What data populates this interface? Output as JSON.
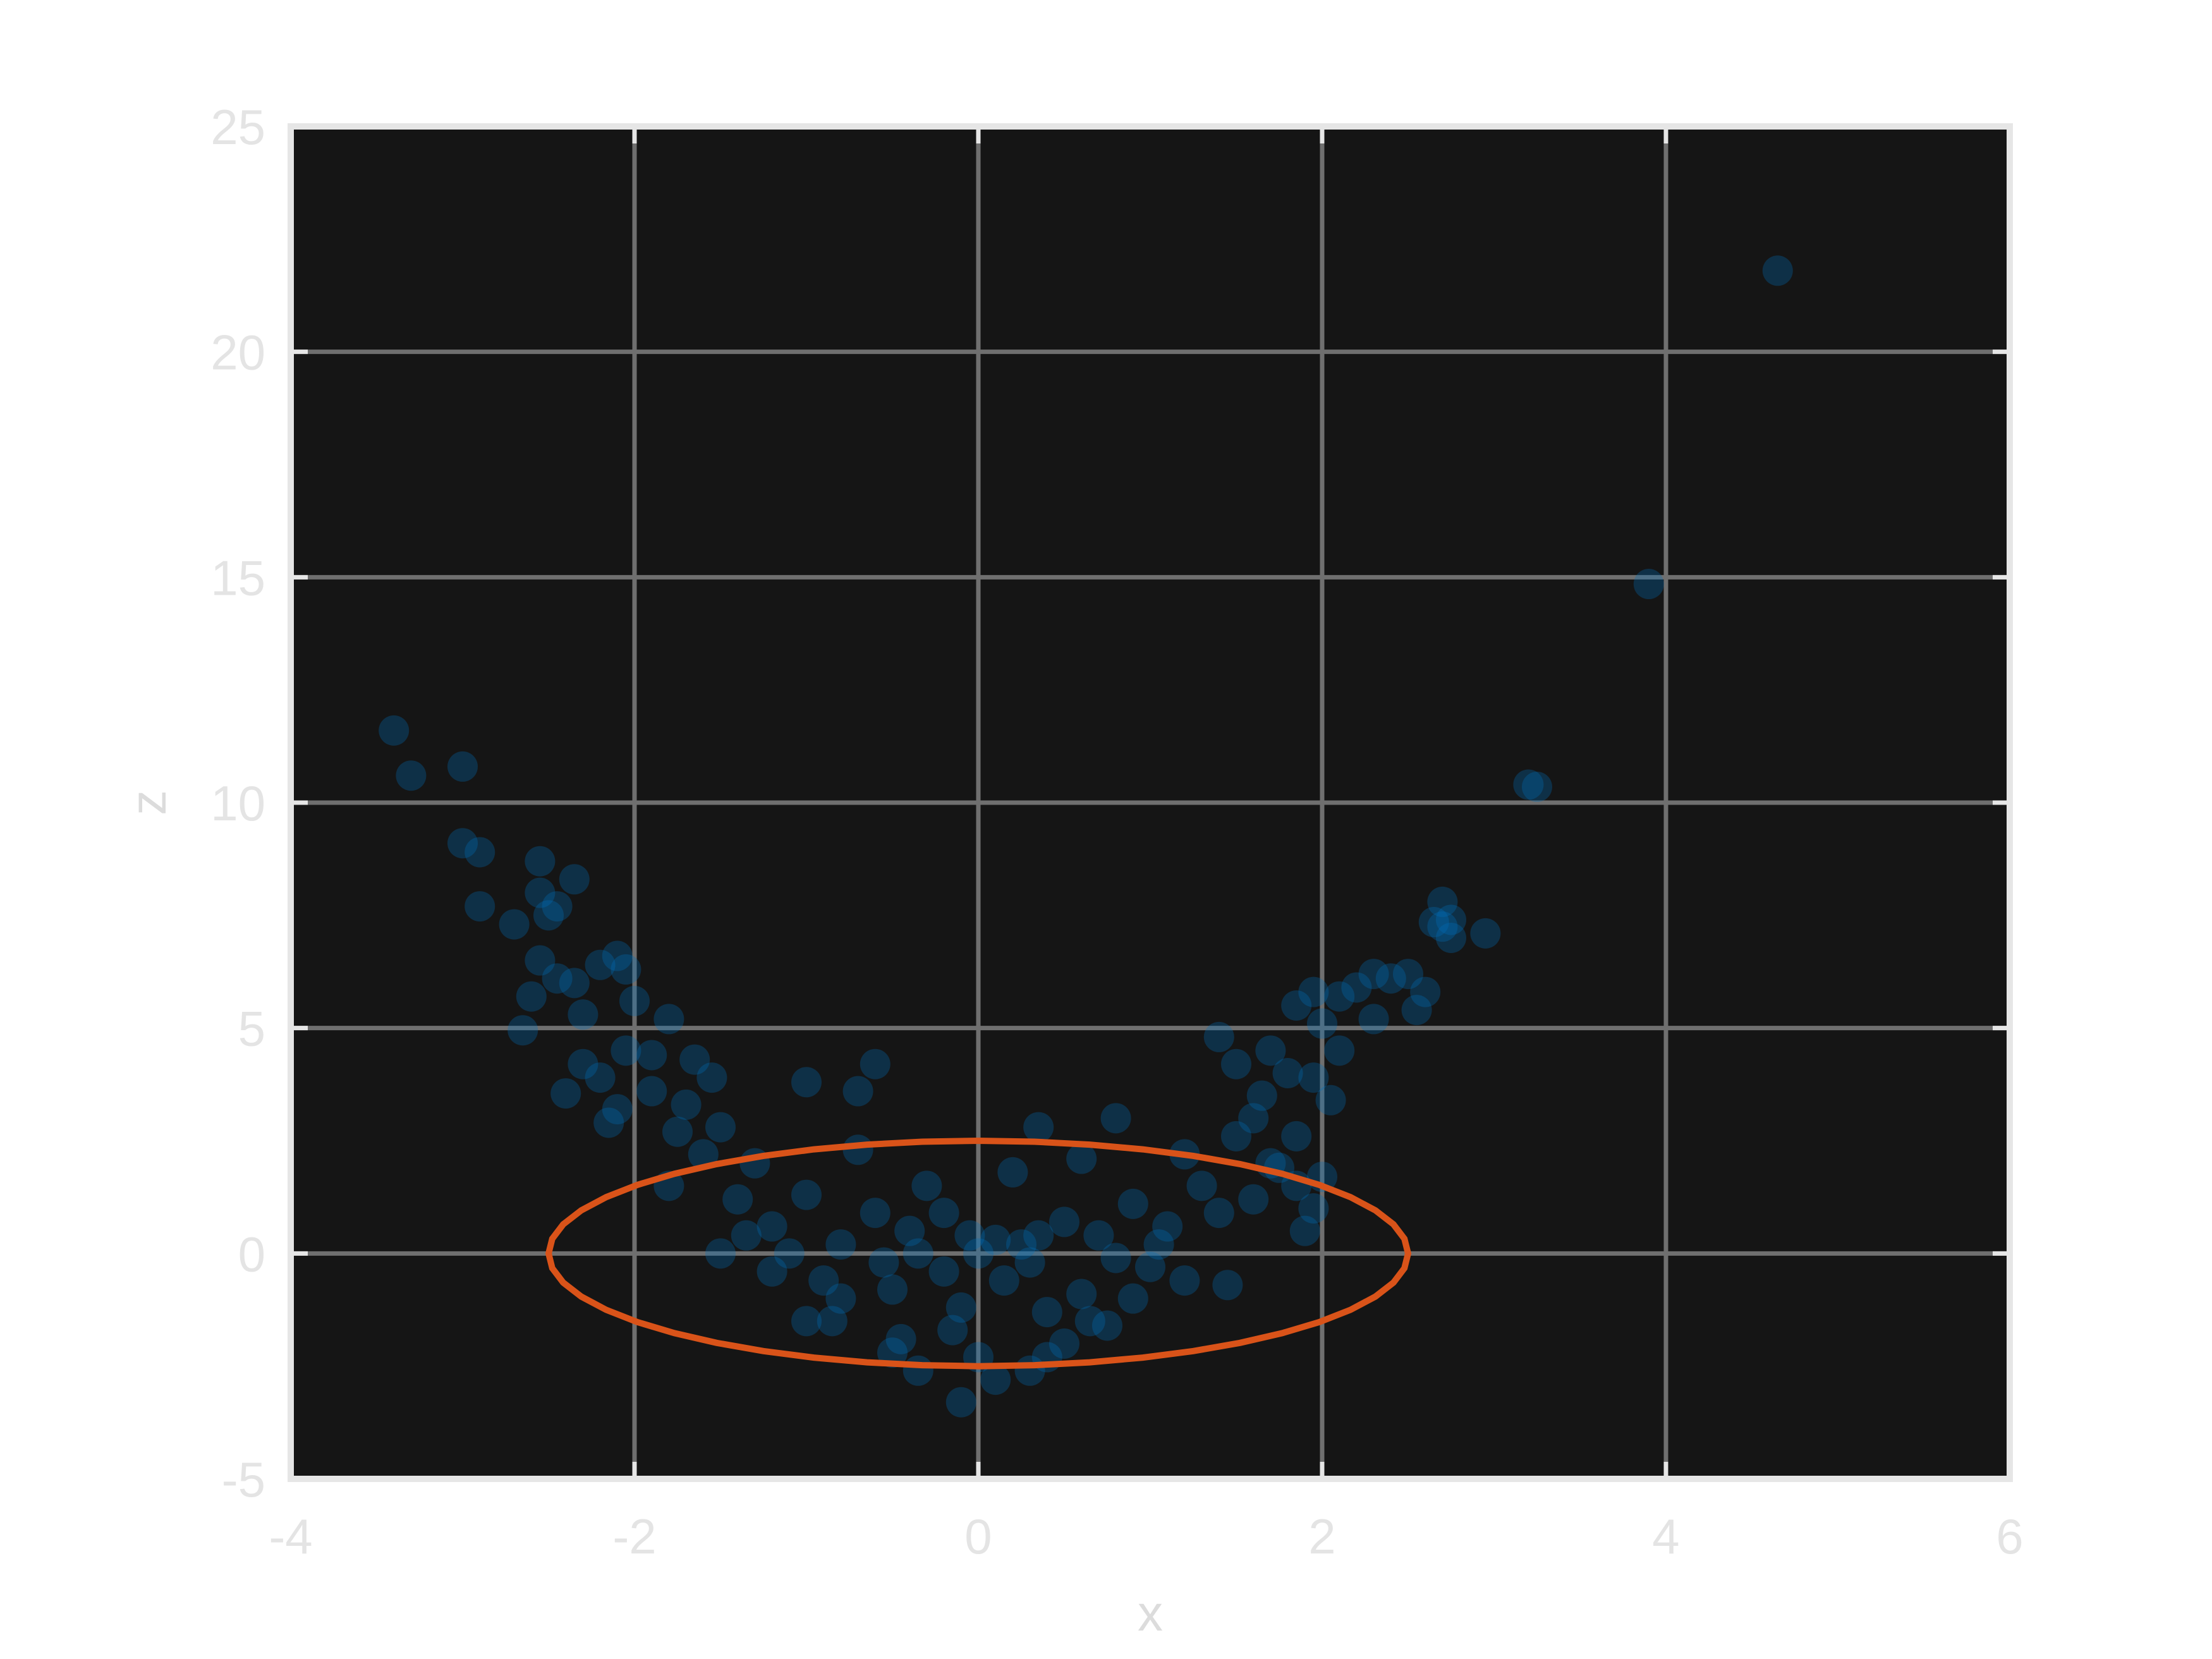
{
  "chart_data": {
    "type": "scatter",
    "title": "",
    "xlabel": "x",
    "ylabel": "z",
    "xlim": [
      -4,
      6
    ],
    "ylim": [
      -5,
      25
    ],
    "xticks": [
      -4,
      -2,
      0,
      2,
      4,
      6
    ],
    "yticks": [
      -5,
      0,
      5,
      10,
      15,
      20,
      25
    ],
    "xtick_labels": [
      "-4",
      "-2",
      "0",
      "2",
      "4",
      "6"
    ],
    "ytick_labels": [
      "-5",
      "0",
      "5",
      "10",
      "15",
      "20",
      "25"
    ],
    "grid": true,
    "legend": "none",
    "colors": {
      "background": "#151515",
      "frame": "#e6e6e6",
      "grid": "#6f6f6f",
      "points": "#0072bd",
      "ellipse": "#d95319"
    },
    "series": [
      {
        "type": "scatter",
        "alpha": 0.3,
        "points": [
          [
            4.65,
            21.8
          ],
          [
            3.9,
            14.85
          ],
          [
            3.2,
            10.4
          ],
          [
            3.25,
            10.35
          ],
          [
            -3.4,
            11.6
          ],
          [
            -3.3,
            10.6
          ],
          [
            -3.0,
            10.8
          ],
          [
            -3.0,
            9.1
          ],
          [
            -2.9,
            8.9
          ],
          [
            -2.9,
            7.7
          ],
          [
            -2.55,
            8.7
          ],
          [
            -2.55,
            8.0
          ],
          [
            -2.5,
            7.5
          ],
          [
            -2.45,
            7.7
          ],
          [
            -2.35,
            8.3
          ],
          [
            -2.7,
            7.3
          ],
          [
            -2.55,
            6.5
          ],
          [
            -2.45,
            6.1
          ],
          [
            -2.35,
            6.0
          ],
          [
            -2.2,
            6.4
          ],
          [
            -2.1,
            6.6
          ],
          [
            -2.05,
            6.3
          ],
          [
            -2.0,
            5.6
          ],
          [
            -2.3,
            5.3
          ],
          [
            -2.6,
            5.7
          ],
          [
            -2.65,
            4.95
          ],
          [
            -2.4,
            3.55
          ],
          [
            -2.05,
            4.5
          ],
          [
            -1.9,
            4.4
          ],
          [
            -1.8,
            5.2
          ],
          [
            -1.65,
            4.3
          ],
          [
            -1.55,
            3.9
          ],
          [
            -2.1,
            3.2
          ],
          [
            2.7,
            7.8
          ],
          [
            2.75,
            7.4
          ],
          [
            2.7,
            7.25
          ],
          [
            2.75,
            7.0
          ],
          [
            2.95,
            7.1
          ],
          [
            2.65,
            7.35
          ],
          [
            2.5,
            6.2
          ],
          [
            2.4,
            6.1
          ],
          [
            2.3,
            6.2
          ],
          [
            2.2,
            5.9
          ],
          [
            2.1,
            5.7
          ],
          [
            1.95,
            5.8
          ],
          [
            2.6,
            5.8
          ],
          [
            2.55,
            5.4
          ],
          [
            2.3,
            5.2
          ],
          [
            2.1,
            4.5
          ],
          [
            2.0,
            5.1
          ],
          [
            1.85,
            5.5
          ],
          [
            1.7,
            4.5
          ],
          [
            1.8,
            4.0
          ],
          [
            1.95,
            3.9
          ],
          [
            2.05,
            3.4
          ],
          [
            1.5,
            4.2
          ],
          [
            1.4,
            4.8
          ],
          [
            1.9,
            0.5
          ],
          [
            1.95,
            1.0
          ],
          [
            1.85,
            1.5
          ],
          [
            2.0,
            1.7
          ],
          [
            1.7,
            2.0
          ],
          [
            -1.5,
            0.0
          ],
          [
            -1.2,
            -0.4
          ],
          [
            -1.0,
            -1.5
          ],
          [
            -0.8,
            -1.0
          ],
          [
            -0.5,
            -2.2
          ],
          [
            -0.35,
            -2.6
          ],
          [
            -0.1,
            -3.3
          ],
          [
            0.1,
            -2.8
          ],
          [
            0.3,
            -2.6
          ],
          [
            0.4,
            -2.3
          ],
          [
            0.65,
            -1.5
          ],
          [
            0.9,
            -1.0
          ],
          [
            1.2,
            -0.6
          ],
          [
            1.45,
            -0.7
          ],
          [
            -0.6,
            4.2
          ],
          [
            -0.7,
            3.6
          ],
          [
            -1.0,
            3.8
          ],
          [
            0.35,
            2.8
          ],
          [
            0.8,
            3.0
          ],
          [
            0.0,
            0.0
          ],
          [
            0.1,
            0.3
          ],
          [
            -0.2,
            -0.4
          ],
          [
            0.3,
            -0.2
          ],
          [
            -0.4,
            0.5
          ],
          [
            0.5,
            0.7
          ],
          [
            -0.6,
            0.9
          ],
          [
            0.7,
            0.4
          ],
          [
            -0.8,
            0.2
          ],
          [
            0.9,
            1.1
          ],
          [
            -1.0,
            1.3
          ],
          [
            1.1,
            0.6
          ],
          [
            -0.3,
            1.5
          ],
          [
            0.2,
            1.8
          ],
          [
            -0.1,
            -1.2
          ],
          [
            0.4,
            -1.3
          ],
          [
            -0.5,
            -0.8
          ],
          [
            0.6,
            -0.9
          ],
          [
            -0.9,
            -0.6
          ],
          [
            1.0,
            -0.3
          ],
          [
            -1.2,
            0.6
          ],
          [
            1.3,
            1.5
          ],
          [
            -1.3,
            2.0
          ],
          [
            1.2,
            2.2
          ],
          [
            -0.7,
            2.3
          ],
          [
            0.6,
            2.1
          ],
          [
            -1.5,
            2.8
          ],
          [
            1.5,
            2.6
          ],
          [
            -1.7,
            3.3
          ],
          [
            1.6,
            3.0
          ],
          [
            -1.4,
            1.2
          ],
          [
            1.4,
            0.9
          ],
          [
            -0.2,
            0.9
          ],
          [
            0.15,
            -0.6
          ],
          [
            -0.05,
            0.4
          ],
          [
            0.25,
            0.2
          ],
          [
            -1.8,
            1.5
          ],
          [
            -1.6,
            2.2
          ],
          [
            1.75,
            1.9
          ],
          [
            -2.15,
            2.9
          ],
          [
            -1.9,
            3.6
          ],
          [
            1.65,
            3.5
          ],
          [
            -0.85,
            -1.5
          ],
          [
            0.75,
            -1.6
          ],
          [
            -0.45,
            -1.9
          ],
          [
            0.5,
            -2.0
          ],
          [
            0.0,
            -2.3
          ],
          [
            -0.15,
            -1.7
          ],
          [
            -1.1,
            0.0
          ],
          [
            1.05,
            0.2
          ],
          [
            -0.35,
            0.0
          ],
          [
            0.35,
            0.4
          ],
          [
            -0.55,
            -0.2
          ],
          [
            0.8,
            -0.1
          ],
          [
            -2.3,
            4.2
          ],
          [
            -2.2,
            3.9
          ],
          [
            -1.75,
            2.7
          ],
          [
            1.85,
            2.6
          ],
          [
            1.6,
            1.2
          ],
          [
            -1.35,
            0.4
          ]
        ]
      }
    ],
    "ellipse": {
      "cx": 0,
      "cy": 0,
      "rx": 2.5,
      "ry": 2.5
    }
  }
}
